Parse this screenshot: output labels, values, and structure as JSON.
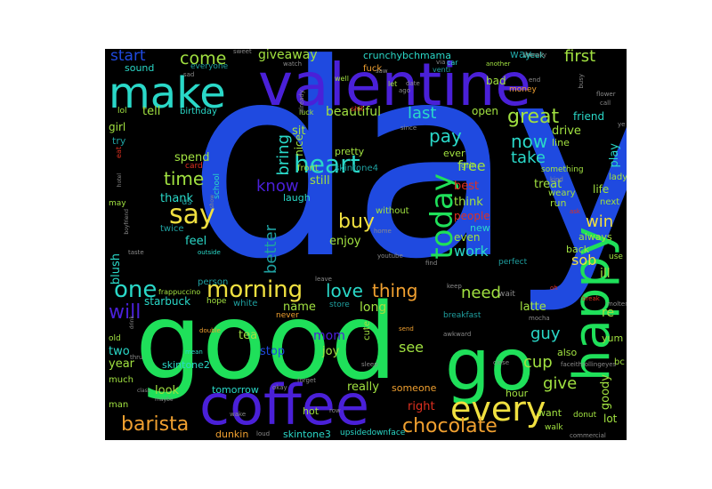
{
  "palette": {
    "blue": "#1f4ae0",
    "green": "#1fe05a",
    "cyan": "#2ad8c8",
    "teal": "#1fa0a0",
    "yellow": "#f0e040",
    "orange": "#f0a030",
    "red": "#e03020",
    "purple": "#4a20d8",
    "lime": "#a0e040",
    "grey": "#8a8a8a"
  },
  "words": {
    "day": "day",
    "good": "good",
    "valentine": "valentine",
    "make": "make",
    "coffee": "coffee",
    "happy": "happy",
    "go": "go",
    "every": "every",
    "today": "today",
    "heart": "heart",
    "say": "say",
    "morning": "morning",
    "one": "one",
    "love": "love",
    "thing": "thing",
    "chocolate": "chocolate",
    "barista": "barista",
    "start": "start",
    "come": "come",
    "giveaway": "giveaway",
    "crunchybchmama": "crunchybchmama",
    "way": "way",
    "first": "first",
    "week": "week",
    "sound": "sound",
    "everyone": "everyone",
    "birthday": "birthday",
    "tell": "tell",
    "girl": "girl",
    "try": "try",
    "time": "time",
    "spend": "spend",
    "card": "card",
    "thank": "thank",
    "feel": "feel",
    "know": "know",
    "bring": "bring",
    "nice": "nice",
    "laugh": "laugh",
    "still": "still",
    "sit": "sit",
    "pretty": "pretty",
    "beautiful": "beautiful",
    "last": "last",
    "pay": "pay",
    "great": "great",
    "now": "now",
    "take": "take",
    "free": "free",
    "best": "best",
    "think": "think",
    "treat": "treat",
    "win": "win",
    "life": "life",
    "sob": "sob",
    "buy": "buy",
    "work": "work",
    "people": "people",
    "new": "new",
    "even": "even",
    "always": "always",
    "need": "need",
    "latte": "latte",
    "guy": "guy",
    "cup": "cup",
    "give": "give",
    "goody": "goody",
    "want": "want",
    "lot": "lot",
    "will": "will",
    "better": "better",
    "starbuck": "starbuck",
    "name": "name",
    "long": "long",
    "mom": "mom",
    "tea": "tea",
    "stop": "stop",
    "joy": "joy",
    "see": "see",
    "two": "two",
    "year": "year",
    "skintone2": "skintone2",
    "look": "look",
    "tomorrow": "tomorrow",
    "really": "really",
    "someone": "someone",
    "right": "right",
    "hot": "hot",
    "dunkin": "dunkin",
    "skintone3": "skintone3",
    "upsidedownface": "upsidedownface",
    "skintone4": "skintone4",
    "open": "open",
    "drive": "drive",
    "friend": "friend",
    "play": "play",
    "lady": "lady",
    "ill": "ill",
    "yum": "yum",
    "re": "re",
    "also": "also",
    "bc": "bc",
    "walk": "walk",
    "donut": "donut",
    "hour": "hour",
    "breakfast": "breakfast",
    "enjoy": "enjoy",
    "blush": "blush",
    "bad": "bad",
    "money": "money",
    "lol": "lol",
    "fuck": "fuck",
    "school": "school",
    "twice": "twice",
    "man": "man",
    "much": "much",
    "old": "old",
    "white": "white",
    "hope": "hope",
    "person": "person",
    "frappuccino": "frappuccino",
    "without": "without",
    "cute": "cute",
    "ever": "ever",
    "line": "line",
    "something": "something",
    "weary": "weary",
    "run": "run",
    "next": "next",
    "perfect": "perfect",
    "front": "front",
    "us": "us",
    "may": "may",
    "eat": "eat",
    "let": "let",
    "luck": "luck",
    "shit": "shit",
    "sleep": "sleep",
    "never": "never",
    "store": "store",
    "keep": "keep",
    "wait": "wait",
    "back": "back",
    "use": "use",
    "grin": "grin",
    "since": "since",
    "ago": "ago",
    "well": "well",
    "another": "another",
    "venti": "venti",
    "car": "car",
    "via": "via",
    "saw": "saw",
    "end": "end",
    "busy": "busy",
    "flower": "flower",
    "call": "call",
    "ye": "ye",
    "sweet": "sweet",
    "watch": "watch",
    "sad": "sad",
    "date": "date",
    "literally": "literally",
    "already": "already",
    "kind": "kind",
    "ask": "ask",
    "home": "home",
    "outside": "outside",
    "taste": "taste",
    "leave": "leave",
    "youtube": "youtube",
    "find": "find",
    "oh": "oh",
    "break": "break",
    "molten": "molten",
    "send": "send",
    "mean": "mean",
    "double": "double",
    "thru": "thru",
    "okay": "okay",
    "forget": "forget",
    "close": "close",
    "class": "class",
    "maybe": "maybe",
    "wake": "wake",
    "loud": "loud",
    "row": "row",
    "mocha": "mocha",
    "faceithrollingeyes": "faceithrollingeyes",
    "commercial": "commercial",
    "awkward": "awkward",
    "hotel": "hotel",
    "boyfriend": "boyfriend",
    "show": "show",
    "drink": "drink"
  }
}
